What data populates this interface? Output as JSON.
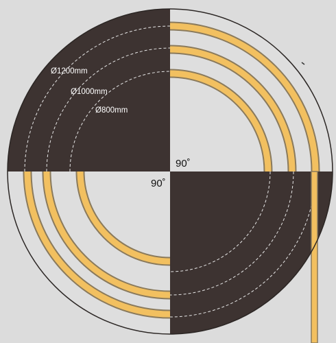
{
  "colors": {
    "background": "#dcdcdc",
    "dark_quadrant": "#3d3331",
    "light_quadrant": "#dedede",
    "strip_fill": "#f2c060",
    "strip_outline": "#8a7a5c",
    "guide_line_light": "#e8e8e8",
    "guide_line_dark": "#ffffff",
    "outline": "#2b2624"
  },
  "diameters": {
    "d1200": "Ø1200mm",
    "d1000": "Ø1000mm",
    "d800": "Ø800mm"
  },
  "angles": {
    "upper": "90˚",
    "lower": "90˚"
  },
  "diagram": {
    "upper_right_strip_count": 3,
    "lower_left_strip_count": 3,
    "straight_strip_count": 1
  }
}
